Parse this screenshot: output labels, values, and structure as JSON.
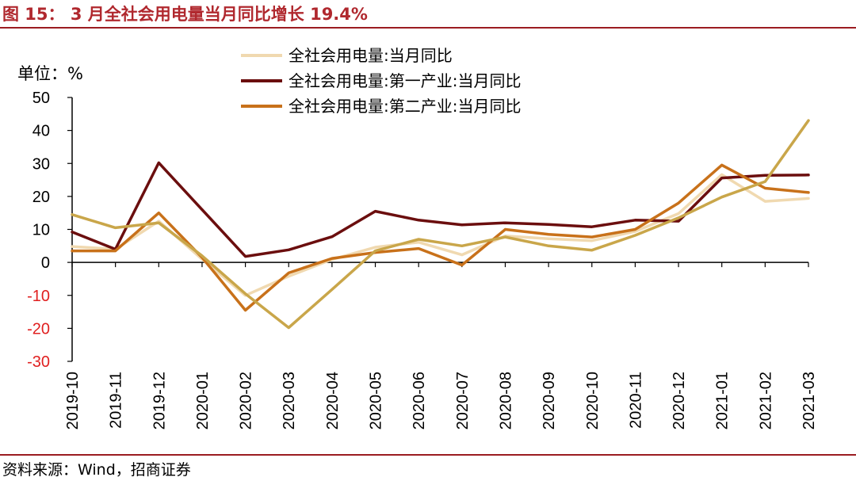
{
  "figure": {
    "title": "图 15： 3 月全社会用电量当月同比增长 19.4%",
    "source": "资料来源：Wind，招商证券"
  },
  "colors": {
    "title": "#b0282e",
    "rule": "#9b1c21",
    "negative_tick": "#e02020"
  },
  "chart_data": {
    "type": "line",
    "unit_label": "单位：%",
    "x": [
      "2019-10",
      "2019-11",
      "2019-12",
      "2020-01",
      "2020-02",
      "2020-03",
      "2020-04",
      "2020-05",
      "2020-06",
      "2020-07",
      "2020-08",
      "2020-09",
      "2020-10",
      "2020-11",
      "2020-12",
      "2021-01",
      "2021-02",
      "2021-03"
    ],
    "ylim": [
      -30,
      50
    ],
    "yticks": [
      -30,
      -20,
      -10,
      0,
      10,
      20,
      30,
      40,
      50
    ],
    "legend_position": "top-center",
    "grid": false,
    "series": [
      {
        "name": "全社会用电量:当月同比",
        "color": "#f0d9b0",
        "values": [
          4.8,
          4.0,
          12.5,
          1.0,
          -10.0,
          -4.2,
          0.9,
          4.6,
          6.1,
          2.3,
          8.0,
          7.2,
          6.6,
          9.4,
          14.8,
          26.6,
          18.5,
          19.4
        ]
      },
      {
        "name": "全社会用电量:第一产业:当月同比",
        "color": "#6b0e0e",
        "values": [
          9.2,
          4.0,
          30.2,
          16.0,
          1.8,
          3.8,
          7.8,
          15.5,
          12.8,
          11.4,
          12.0,
          11.5,
          10.8,
          12.8,
          12.5,
          25.6,
          26.4,
          26.5
        ]
      },
      {
        "name": "全社会用电量:第二产业:当月同比",
        "color": "#c8711a",
        "values": [
          3.5,
          3.5,
          15.0,
          1.5,
          -14.5,
          -3.2,
          1.2,
          3.0,
          4.2,
          -0.8,
          10.0,
          8.5,
          7.7,
          10.0,
          18.0,
          29.5,
          22.5,
          21.2
        ]
      },
      {
        "name": "",
        "color": "#c9a64a",
        "values": [
          14.5,
          10.5,
          12.0,
          2.0,
          -9.5,
          -19.8,
          -8.2,
          3.5,
          7.0,
          5.0,
          7.7,
          5.0,
          3.7,
          8.2,
          13.5,
          19.8,
          24.5,
          43.0
        ]
      }
    ]
  }
}
